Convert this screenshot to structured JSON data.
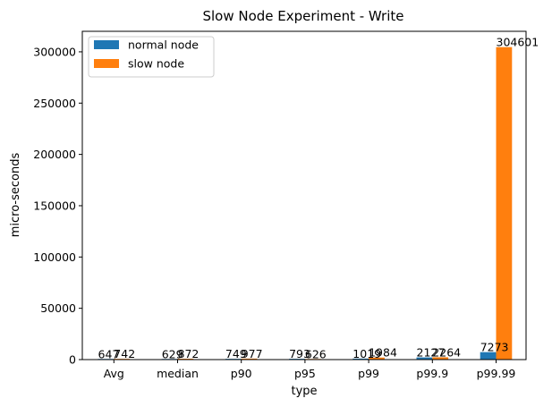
{
  "chart_data": {
    "type": "bar",
    "title": "Slow Node Experiment - Write",
    "xlabel": "type",
    "ylabel": "micro-seconds",
    "categories": [
      "Avg",
      "median",
      "p90",
      "p95",
      "p99",
      "p99.9",
      "p99.99"
    ],
    "series": [
      {
        "name": "normal node",
        "color": "#1f77b4",
        "values": [
          647,
          629,
          749,
          793,
          1019,
          2127,
          7273
        ]
      },
      {
        "name": "slow node",
        "color": "#ff7f0e",
        "values": [
          742,
          872,
          977,
          626,
          1984,
          2264,
          304601
        ]
      }
    ],
    "ylim": [
      0,
      320000
    ],
    "yticks": [
      0,
      50000,
      100000,
      150000,
      200000,
      250000,
      300000
    ],
    "ytick_labels": [
      "0",
      "50000",
      "100000",
      "150000",
      "200000",
      "250000",
      "300000"
    ],
    "grid": false,
    "legend": "top-left"
  }
}
